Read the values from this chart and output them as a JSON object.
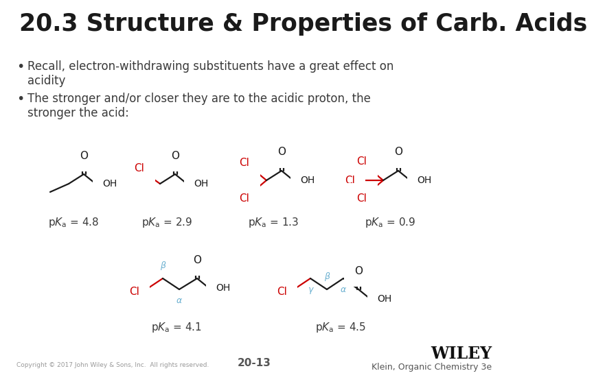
{
  "title": "20.3 Structure & Properties of Carb. Acids",
  "bullet1": "Recall, electron-withdrawing substituents have a great effect on\nacidity",
  "bullet2": "The stronger and/or closer they are to the acidic proton, the\nstronger the acid:",
  "bg_color": "#ffffff",
  "title_color": "#1a1a1a",
  "text_color": "#3a3a3a",
  "red_color": "#cc0000",
  "bond_color": "#1a1a1a",
  "footer_left": "Copyright © 2017 John Wiley & Sons, Inc.  All rights reserved.",
  "footer_center": "20-13",
  "footer_right": "Klein, Organic Chemistry 3e",
  "wiley_text": "WILEY",
  "greek_color": "#6ab0d0",
  "pka_values": [
    "4.8",
    "2.9",
    "1.3",
    "0.9",
    "4.1",
    "4.5"
  ]
}
